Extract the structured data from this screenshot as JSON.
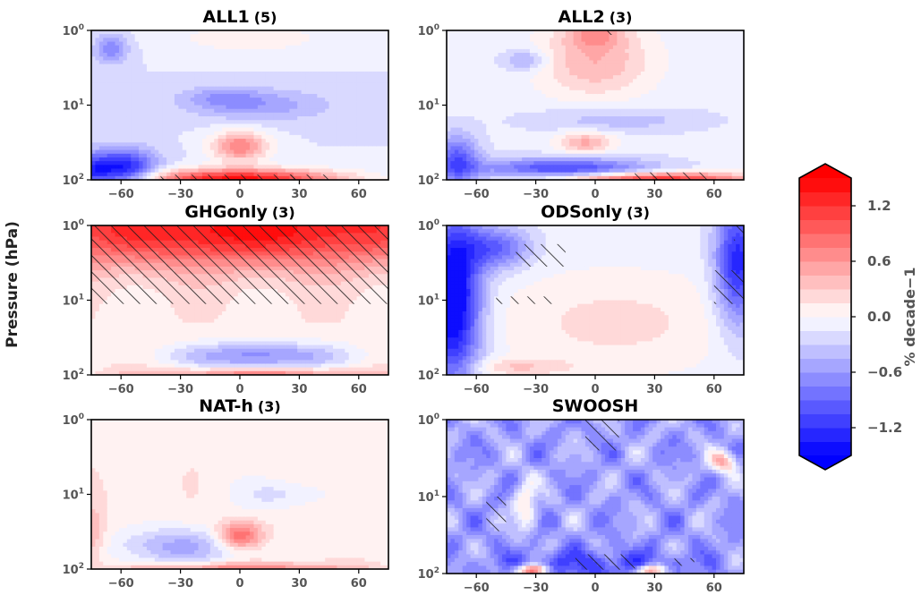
{
  "figure": {
    "ylabel": "Pressure (hPa)",
    "colorbar_label": "% decade−1"
  },
  "chart_data": {
    "type": "heatmap",
    "x_ticks": [
      "−60",
      "−30",
      "0",
      "30",
      "60"
    ],
    "x_tick_values": [
      -60,
      -30,
      0,
      30,
      60
    ],
    "xlim": [
      -75,
      75
    ],
    "y_ticks": [
      {
        "base": "10",
        "exp": "0"
      },
      {
        "base": "10",
        "exp": "1"
      },
      {
        "base": "10",
        "exp": "2"
      }
    ],
    "y_tick_values": [
      1,
      10,
      100
    ],
    "ylim": [
      100,
      1
    ],
    "y_scale": "log",
    "y_inverted": true,
    "colorbar": {
      "levels": [
        -1.5,
        -1.35,
        -1.2,
        -1.05,
        -0.9,
        -0.75,
        -0.6,
        -0.45,
        -0.3,
        -0.15,
        0.0,
        0.15,
        0.3,
        0.45,
        0.6,
        0.75,
        0.9,
        1.05,
        1.2,
        1.35,
        1.5
      ],
      "tick_values": [
        1.2,
        0.6,
        0.0,
        -0.6,
        -1.2
      ],
      "tick_labels": [
        "1.2",
        "0.6",
        "0.0",
        "−0.6",
        "−1.2"
      ],
      "extend": "both",
      "colormap": "bwr"
    },
    "panels": [
      {
        "title": "ALL1",
        "count": "(5)"
      },
      {
        "title": "ALL2",
        "count": "(3)"
      },
      {
        "title": "GHGonly",
        "count": "(3)"
      },
      {
        "title": "ODSonly",
        "count": "(3)"
      },
      {
        "title": "NAT-h",
        "count": "(3)"
      },
      {
        "title": "SWOOSH",
        "count": ""
      }
    ]
  }
}
